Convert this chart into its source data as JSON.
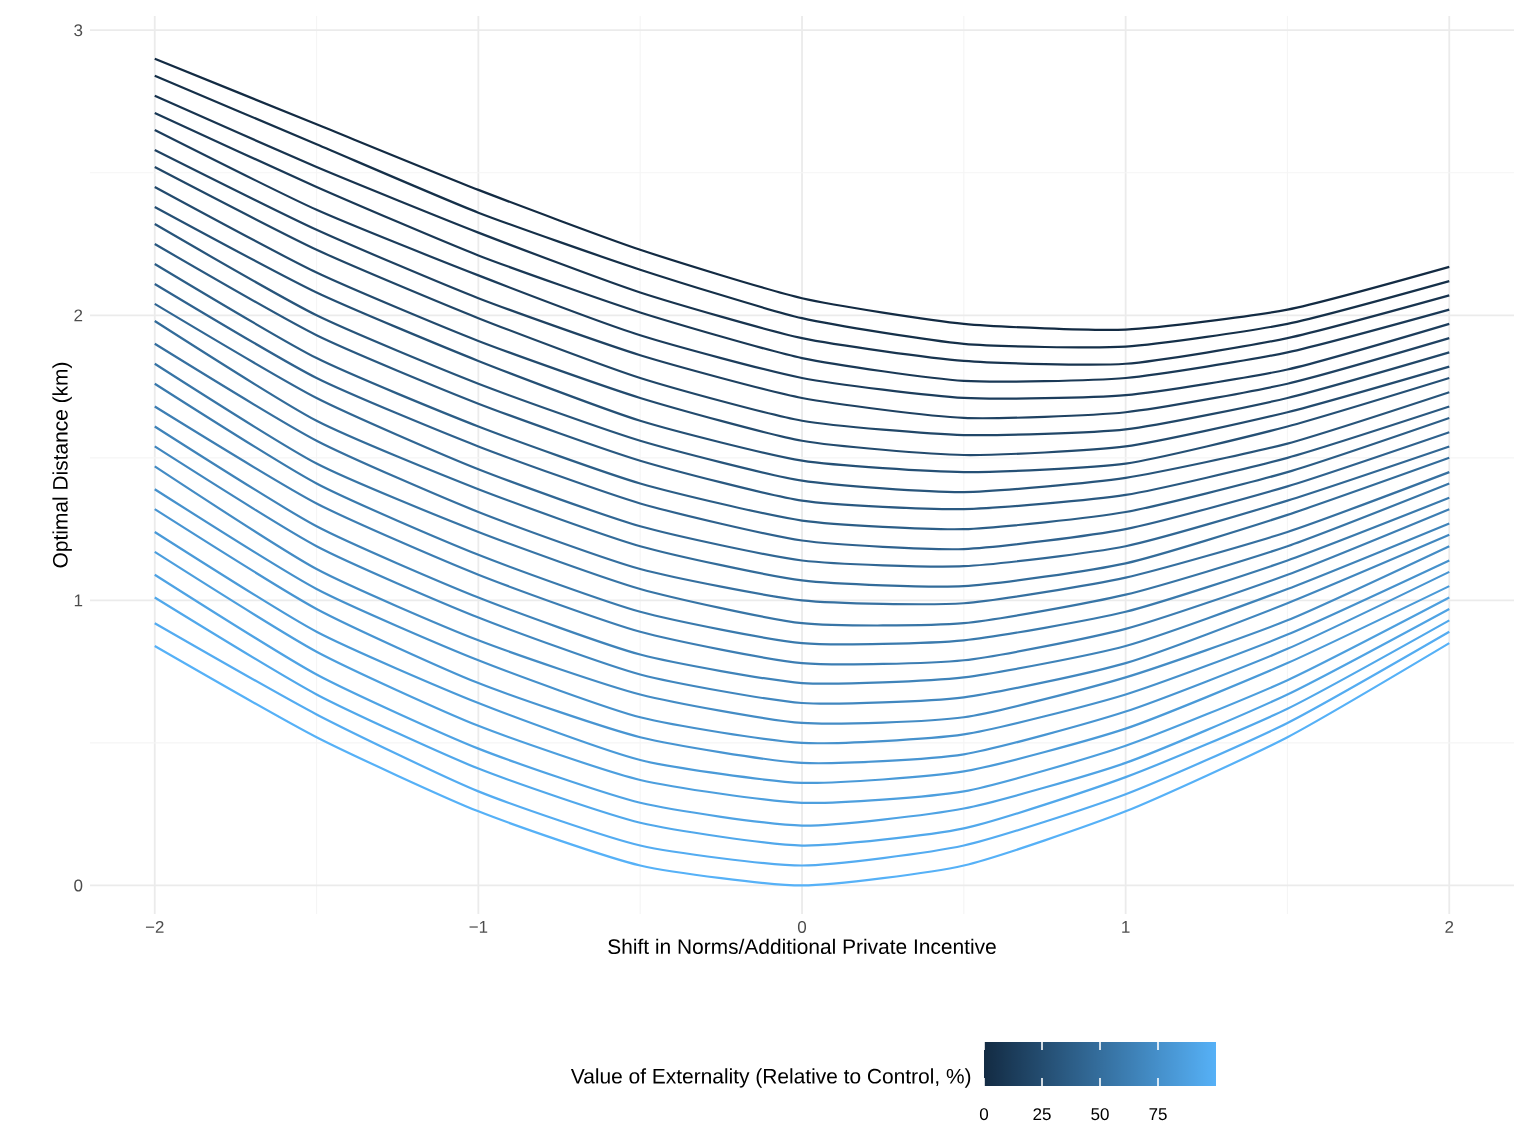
{
  "chart_data": {
    "type": "line",
    "xlabel": "Shift in Norms/Additional Private Incentive",
    "ylabel": "Optimal Distance (km)",
    "clabel": "Value of Externality (Relative to Control, %)",
    "clim": [
      0,
      100
    ],
    "cticks": [
      0,
      25,
      50,
      75
    ],
    "x": [
      -2,
      -1.5,
      -1,
      -0.5,
      0,
      0.5,
      1,
      1.5,
      2
    ],
    "xlim": [
      -2.2,
      2.2
    ],
    "ylim": [
      -0.1,
      3.05
    ],
    "xticks": [
      {
        "value": -2,
        "label": "−2"
      },
      {
        "value": -1,
        "label": "−1"
      },
      0,
      1,
      2
    ],
    "yticks": [
      0,
      1,
      2,
      3
    ],
    "grid": true,
    "series": [
      {
        "color": "#132B43",
        "values": [
          2.9,
          2.67,
          2.44,
          2.23,
          2.06,
          1.97,
          1.95,
          2.02,
          2.17
        ]
      },
      {
        "color": "#153049",
        "values": [
          2.84,
          2.6,
          2.36,
          2.16,
          1.99,
          1.9,
          1.89,
          1.97,
          2.12
        ]
      },
      {
        "color": "#18344F",
        "values": [
          2.77,
          2.52,
          2.29,
          2.08,
          1.92,
          1.84,
          1.83,
          1.92,
          2.07
        ]
      },
      {
        "color": "#1A3956",
        "values": [
          2.71,
          2.45,
          2.21,
          2.01,
          1.85,
          1.77,
          1.78,
          1.87,
          2.02
        ]
      },
      {
        "color": "#1C3D5C",
        "values": [
          2.65,
          2.37,
          2.14,
          1.93,
          1.78,
          1.71,
          1.72,
          1.81,
          1.97
        ]
      },
      {
        "color": "#1F4262",
        "values": [
          2.58,
          2.3,
          2.06,
          1.86,
          1.71,
          1.64,
          1.66,
          1.76,
          1.92
        ]
      },
      {
        "color": "#214768",
        "values": [
          2.52,
          2.23,
          1.99,
          1.78,
          1.63,
          1.58,
          1.6,
          1.71,
          1.87
        ]
      },
      {
        "color": "#234B6E",
        "values": [
          2.45,
          2.15,
          1.91,
          1.71,
          1.56,
          1.51,
          1.54,
          1.66,
          1.82
        ]
      },
      {
        "color": "#255075",
        "values": [
          2.38,
          2.08,
          1.84,
          1.63,
          1.49,
          1.45,
          1.48,
          1.61,
          1.78
        ]
      },
      {
        "color": "#28557B",
        "values": [
          2.32,
          2.0,
          1.76,
          1.56,
          1.42,
          1.38,
          1.43,
          1.55,
          1.73
        ]
      },
      {
        "color": "#2A5981",
        "values": [
          2.25,
          1.93,
          1.69,
          1.49,
          1.35,
          1.32,
          1.37,
          1.5,
          1.68
        ]
      },
      {
        "color": "#2C5E87",
        "values": [
          2.18,
          1.85,
          1.61,
          1.41,
          1.28,
          1.25,
          1.31,
          1.45,
          1.64
        ]
      },
      {
        "color": "#2F628E",
        "values": [
          2.11,
          1.78,
          1.54,
          1.34,
          1.21,
          1.18,
          1.25,
          1.4,
          1.59
        ]
      },
      {
        "color": "#316794",
        "values": [
          2.04,
          1.71,
          1.46,
          1.26,
          1.14,
          1.12,
          1.19,
          1.35,
          1.54
        ]
      },
      {
        "color": "#336C9A",
        "values": [
          1.98,
          1.63,
          1.39,
          1.19,
          1.07,
          1.05,
          1.13,
          1.3,
          1.5
        ]
      },
      {
        "color": "#3670A0",
        "values": [
          1.9,
          1.56,
          1.31,
          1.11,
          1.0,
          0.99,
          1.08,
          1.24,
          1.45
        ]
      },
      {
        "color": "#3875A6",
        "values": [
          1.83,
          1.48,
          1.24,
          1.04,
          0.92,
          0.92,
          1.02,
          1.19,
          1.41
        ]
      },
      {
        "color": "#3A7AAD",
        "values": [
          1.76,
          1.41,
          1.16,
          0.96,
          0.85,
          0.86,
          0.96,
          1.14,
          1.36
        ]
      },
      {
        "color": "#3D7EB3",
        "values": [
          1.68,
          1.34,
          1.09,
          0.89,
          0.78,
          0.79,
          0.9,
          1.09,
          1.32
        ]
      },
      {
        "color": "#3F83B9",
        "values": [
          1.61,
          1.26,
          1.01,
          0.81,
          0.71,
          0.73,
          0.84,
          1.04,
          1.27
        ]
      },
      {
        "color": "#4187BF",
        "values": [
          1.54,
          1.19,
          0.94,
          0.74,
          0.64,
          0.66,
          0.78,
          0.99,
          1.23
        ]
      },
      {
        "color": "#448CC5",
        "values": [
          1.47,
          1.11,
          0.86,
          0.67,
          0.57,
          0.59,
          0.73,
          0.93,
          1.19
        ]
      },
      {
        "color": "#4691CC",
        "values": [
          1.39,
          1.04,
          0.79,
          0.59,
          0.5,
          0.53,
          0.67,
          0.88,
          1.14
        ]
      },
      {
        "color": "#4895D2",
        "values": [
          1.32,
          0.97,
          0.71,
          0.52,
          0.43,
          0.46,
          0.61,
          0.83,
          1.1
        ]
      },
      {
        "color": "#4A9AD8",
        "values": [
          1.24,
          0.89,
          0.64,
          0.44,
          0.36,
          0.4,
          0.55,
          0.78,
          1.05
        ]
      },
      {
        "color": "#4D9FDE",
        "values": [
          1.17,
          0.82,
          0.56,
          0.37,
          0.29,
          0.33,
          0.49,
          0.72,
          1.01
        ]
      },
      {
        "color": "#4FA3E4",
        "values": [
          1.09,
          0.74,
          0.48,
          0.29,
          0.21,
          0.27,
          0.43,
          0.67,
          0.97
        ]
      },
      {
        "color": "#51A8EB",
        "values": [
          1.01,
          0.67,
          0.41,
          0.22,
          0.14,
          0.2,
          0.38,
          0.62,
          0.93
        ]
      },
      {
        "color": "#54ACF1",
        "values": [
          0.92,
          0.6,
          0.33,
          0.14,
          0.07,
          0.14,
          0.32,
          0.57,
          0.89
        ]
      },
      {
        "color": "#56B1F7",
        "values": [
          0.84,
          0.52,
          0.26,
          0.07,
          0.0,
          0.07,
          0.26,
          0.52,
          0.85
        ]
      }
    ]
  }
}
